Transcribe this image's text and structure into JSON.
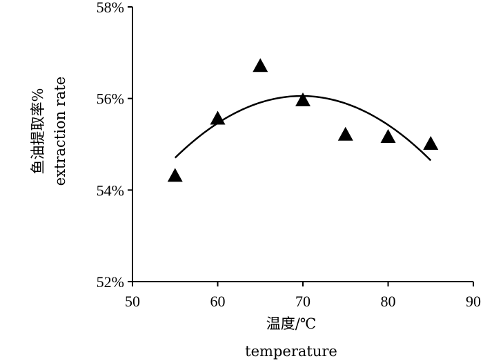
{
  "chart_data": {
    "type": "scatter",
    "xlabel": "温度/℃",
    "xlabel_en": "temperature",
    "ylabel": "鱼油提取率%",
    "ylabel_en": "extraction rate",
    "xlim": [
      50,
      90
    ],
    "ylim": [
      52,
      58
    ],
    "x_ticks": [
      50,
      60,
      70,
      80,
      90
    ],
    "y_ticks": [
      52,
      54,
      56,
      58
    ],
    "y_tick_labels": [
      "52%",
      "54%",
      "56%",
      "58%"
    ],
    "grid": false,
    "series": [
      {
        "marker": "triangle",
        "color": "#000000",
        "x": [
          55,
          60,
          65,
          70,
          75,
          80,
          85
        ],
        "y": [
          54.3,
          55.55,
          56.7,
          55.95,
          55.2,
          55.15,
          55.0
        ]
      }
    ],
    "trendline": {
      "type": "polynomial-2",
      "color": "#000000",
      "x": [
        55,
        60,
        65,
        70,
        75,
        80,
        85
      ],
      "y": [
        54.7,
        55.48,
        55.9,
        56.03,
        55.9,
        55.45,
        54.63
      ]
    }
  }
}
